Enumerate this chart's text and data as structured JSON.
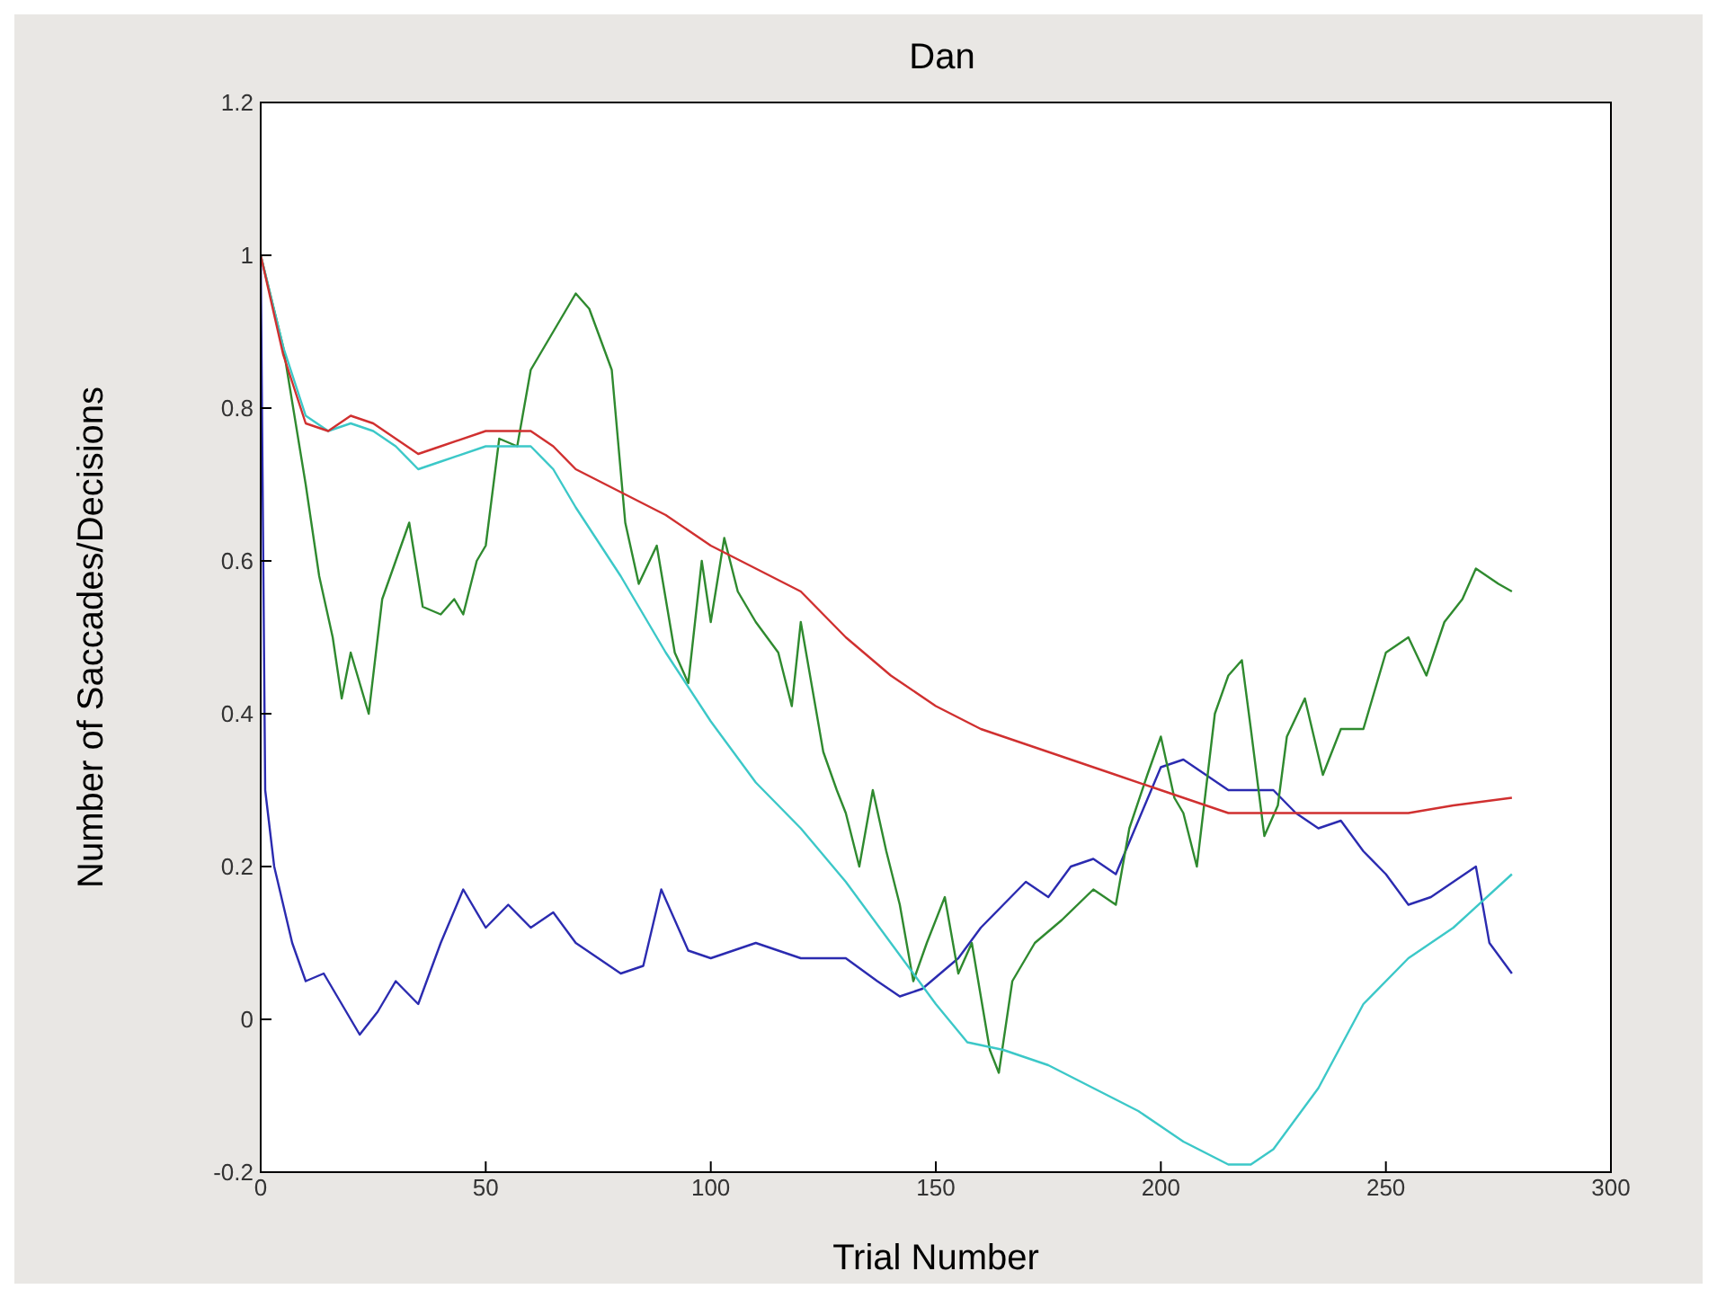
{
  "chart_data": {
    "type": "line",
    "title": "Dan",
    "xlabel": "Trial Number",
    "ylabel": "Number of Saccades/Decisions",
    "xlim": [
      0,
      300
    ],
    "xticks": [
      0,
      50,
      100,
      150,
      200,
      250,
      300
    ],
    "ylim": [
      -0.2,
      1.2
    ],
    "yticks": [
      -0.2,
      0,
      0.2,
      0.4,
      0.6,
      0.8,
      1,
      1.2
    ],
    "line_style": "solid",
    "series": [
      {
        "color": "#2b2bb0",
        "x": [
          0,
          1,
          3,
          7,
          10,
          14,
          18,
          22,
          26,
          30,
          35,
          40,
          45,
          50,
          55,
          60,
          65,
          70,
          75,
          80,
          85,
          89,
          95,
          100,
          110,
          120,
          130,
          137,
          142,
          147,
          155,
          160,
          165,
          170,
          175,
          180,
          185,
          190,
          195,
          200,
          205,
          210,
          215,
          220,
          225,
          230,
          235,
          240,
          245,
          250,
          255,
          260,
          265,
          270,
          273,
          278
        ],
        "values": [
          1.0,
          0.3,
          0.2,
          0.1,
          0.05,
          0.06,
          0.02,
          -0.02,
          0.01,
          0.05,
          0.02,
          0.1,
          0.17,
          0.12,
          0.15,
          0.12,
          0.14,
          0.1,
          0.08,
          0.06,
          0.07,
          0.17,
          0.09,
          0.08,
          0.1,
          0.08,
          0.08,
          0.05,
          0.03,
          0.04,
          0.08,
          0.12,
          0.15,
          0.18,
          0.16,
          0.2,
          0.21,
          0.19,
          0.26,
          0.33,
          0.34,
          0.32,
          0.3,
          0.3,
          0.3,
          0.27,
          0.25,
          0.26,
          0.22,
          0.19,
          0.15,
          0.16,
          0.18,
          0.2,
          0.1,
          0.06
        ]
      },
      {
        "color": "#2f8a2f",
        "x": [
          0,
          5,
          10,
          13,
          16,
          18,
          20,
          22,
          24,
          27,
          30,
          33,
          36,
          40,
          43,
          45,
          48,
          50,
          53,
          57,
          60,
          65,
          70,
          73,
          78,
          81,
          84,
          88,
          92,
          95,
          98,
          100,
          103,
          106,
          110,
          115,
          118,
          120,
          125,
          128,
          130,
          133,
          136,
          139,
          142,
          145,
          148,
          152,
          155,
          158,
          162,
          164,
          167,
          172,
          178,
          185,
          190,
          193,
          197,
          200,
          203,
          205,
          208,
          212,
          215,
          218,
          220,
          223,
          226,
          228,
          232,
          236,
          240,
          245,
          250,
          255,
          259,
          263,
          267,
          270,
          275,
          278
        ],
        "values": [
          1.0,
          0.88,
          0.7,
          0.58,
          0.5,
          0.42,
          0.48,
          0.44,
          0.4,
          0.55,
          0.6,
          0.65,
          0.54,
          0.53,
          0.55,
          0.53,
          0.6,
          0.62,
          0.76,
          0.75,
          0.85,
          0.9,
          0.95,
          0.93,
          0.85,
          0.65,
          0.57,
          0.62,
          0.48,
          0.44,
          0.6,
          0.52,
          0.63,
          0.56,
          0.52,
          0.48,
          0.41,
          0.52,
          0.35,
          0.3,
          0.27,
          0.2,
          0.3,
          0.22,
          0.15,
          0.05,
          0.1,
          0.16,
          0.06,
          0.1,
          -0.04,
          -0.07,
          0.05,
          0.1,
          0.13,
          0.17,
          0.15,
          0.25,
          0.32,
          0.37,
          0.29,
          0.27,
          0.2,
          0.4,
          0.45,
          0.47,
          0.38,
          0.24,
          0.28,
          0.37,
          0.42,
          0.32,
          0.38,
          0.38,
          0.48,
          0.5,
          0.45,
          0.52,
          0.55,
          0.59,
          0.57,
          0.56
        ]
      },
      {
        "color": "#3cc8c8",
        "x": [
          0,
          5,
          10,
          15,
          20,
          25,
          30,
          35,
          40,
          50,
          60,
          65,
          70,
          80,
          90,
          100,
          110,
          120,
          130,
          140,
          150,
          157,
          165,
          175,
          185,
          195,
          205,
          215,
          220,
          225,
          235,
          245,
          255,
          265,
          278
        ],
        "values": [
          1.0,
          0.88,
          0.79,
          0.77,
          0.78,
          0.77,
          0.75,
          0.72,
          0.73,
          0.75,
          0.75,
          0.72,
          0.67,
          0.58,
          0.48,
          0.39,
          0.31,
          0.25,
          0.18,
          0.1,
          0.02,
          -0.03,
          -0.04,
          -0.06,
          -0.09,
          -0.12,
          -0.16,
          -0.19,
          -0.19,
          -0.17,
          -0.09,
          0.02,
          0.08,
          0.12,
          0.19
        ]
      },
      {
        "color": "#d03030",
        "x": [
          0,
          5,
          10,
          15,
          20,
          25,
          30,
          35,
          40,
          50,
          60,
          65,
          70,
          80,
          90,
          100,
          110,
          120,
          130,
          140,
          150,
          160,
          170,
          180,
          190,
          200,
          210,
          215,
          225,
          240,
          255,
          265,
          278
        ],
        "values": [
          1.0,
          0.87,
          0.78,
          0.77,
          0.79,
          0.78,
          0.76,
          0.74,
          0.75,
          0.77,
          0.77,
          0.75,
          0.72,
          0.69,
          0.66,
          0.62,
          0.59,
          0.56,
          0.5,
          0.45,
          0.41,
          0.38,
          0.36,
          0.34,
          0.32,
          0.3,
          0.28,
          0.27,
          0.27,
          0.27,
          0.27,
          0.28,
          0.29
        ]
      }
    ]
  }
}
